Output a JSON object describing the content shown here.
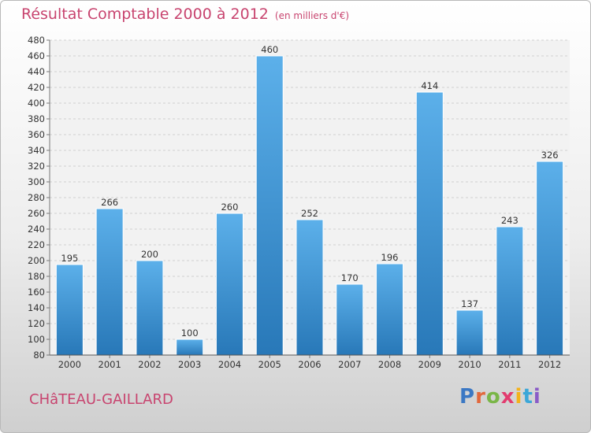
{
  "header": {
    "title": "Résultat Comptable 2000 à 2012",
    "subtitle": "(en milliers d'€)"
  },
  "footer": {
    "town": "CHâTEAU-GAILLARD",
    "brand": "Proxiti",
    "brand_colors": [
      "#3b78c4",
      "#e2683c",
      "#7ab648",
      "#e23c6f",
      "#f4b21b",
      "#3ba7d8",
      "#8a5cc7"
    ]
  },
  "chart_data": {
    "type": "bar",
    "title": "Résultat Comptable 2000 à 2012",
    "subtitle": "(en milliers d'€)",
    "xlabel": "",
    "ylabel": "",
    "categories": [
      "2000",
      "2001",
      "2002",
      "2003",
      "2004",
      "2005",
      "2006",
      "2007",
      "2008",
      "2009",
      "2010",
      "2011",
      "2012"
    ],
    "values": [
      195,
      266,
      200,
      100,
      260,
      460,
      252,
      170,
      196,
      414,
      137,
      243,
      326
    ],
    "ylim": [
      80,
      480
    ],
    "ytick_step": 20,
    "grid": true,
    "bar_color_top": "#5cb0ea",
    "bar_color_bottom": "#2878b8",
    "label_color": "#333333"
  }
}
